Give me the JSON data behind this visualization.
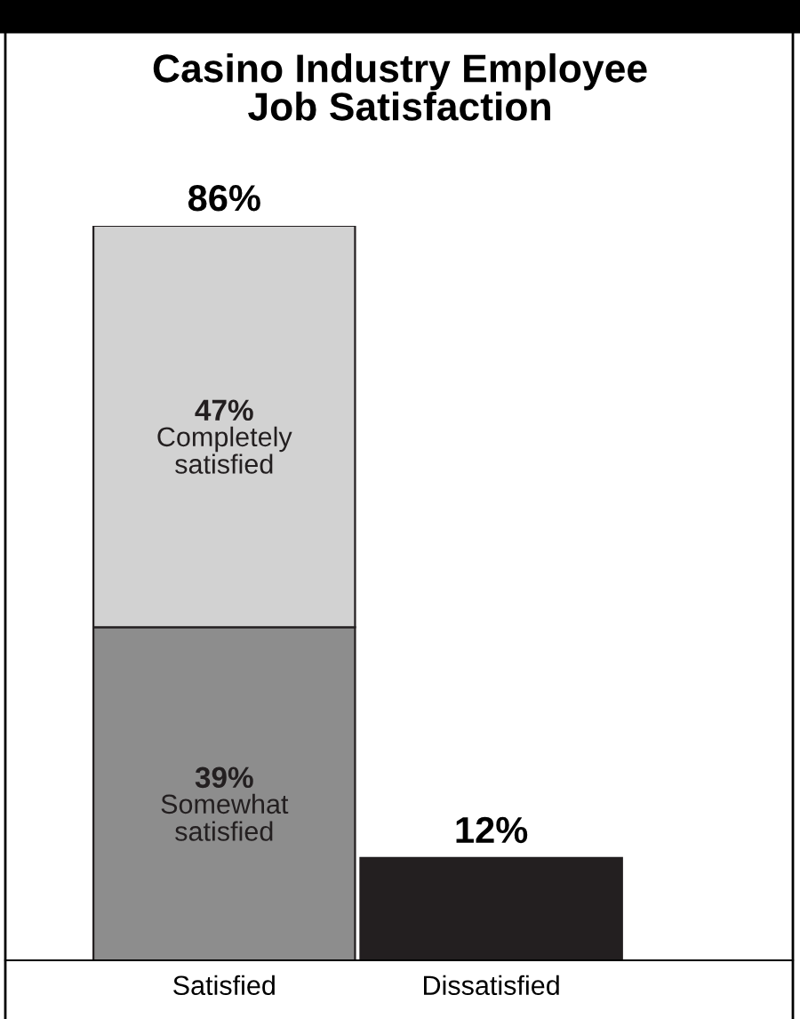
{
  "chart_data": {
    "type": "bar",
    "title": "Casino Industry Employee\nJob Satisfaction",
    "categories": [
      "Satisfied",
      "Dissatisfied"
    ],
    "stacked": true,
    "legend": false,
    "series": [
      {
        "name": "Somewhat\nsatisfied",
        "color": "#8d8d8d",
        "values": [
          39,
          null
        ],
        "value_labels": [
          "39%",
          null
        ]
      },
      {
        "name": "Completely\nsatisfied",
        "color": "#d2d2d2",
        "values": [
          47,
          null
        ],
        "value_labels": [
          "47%",
          null
        ]
      },
      {
        "color": "#231f20",
        "values": [
          null,
          12
        ]
      }
    ],
    "totals": [
      "86%",
      "12%"
    ]
  }
}
